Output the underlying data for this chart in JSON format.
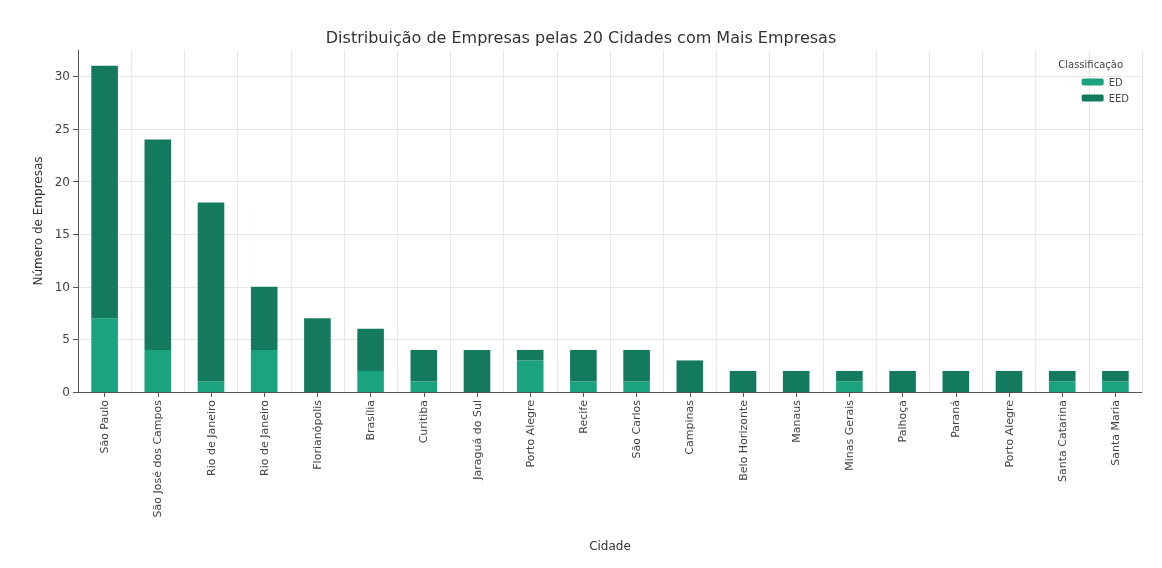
{
  "chart_data": {
    "type": "bar",
    "title": "Distribuição de Empresas pelas 20 Cidades com Mais Empresas",
    "xlabel": "Cidade",
    "ylabel": "Número de Empresas",
    "legend_title": "Classificação",
    "categories": [
      "São Paulo",
      "São José dos Campos",
      "Rio de Janeiro",
      "Rio de Janeiro",
      "Florianópolis",
      "Brasília",
      "Curitiba",
      "Jaraguá do Sul",
      "Porto Alegre",
      "Recife",
      "São Carlos",
      "Campinas",
      "Belo Horizonte",
      "Manaus",
      "Minas Gerais",
      "Palhoça",
      "Paraná",
      "Porto Alegre",
      "Santa Catarina",
      "Santa Maria"
    ],
    "stacked": true,
    "series": [
      {
        "name": "ED",
        "color": "#1ba37f",
        "values": [
          7,
          4,
          1,
          4,
          0,
          2,
          1,
          0,
          3,
          1,
          1,
          0,
          0,
          0,
          1,
          0,
          0,
          0,
          1,
          1
        ]
      },
      {
        "name": "EED",
        "color": "#137a5e",
        "values": [
          24,
          20,
          17,
          6,
          7,
          4,
          3,
          4,
          1,
          3,
          3,
          3,
          2,
          2,
          1,
          2,
          2,
          2,
          1,
          1
        ]
      }
    ],
    "ylim": [
      0,
      32.5
    ],
    "yticks": [
      0,
      5,
      10,
      15,
      20,
      25,
      30
    ],
    "grid": true,
    "legend": "top right"
  }
}
